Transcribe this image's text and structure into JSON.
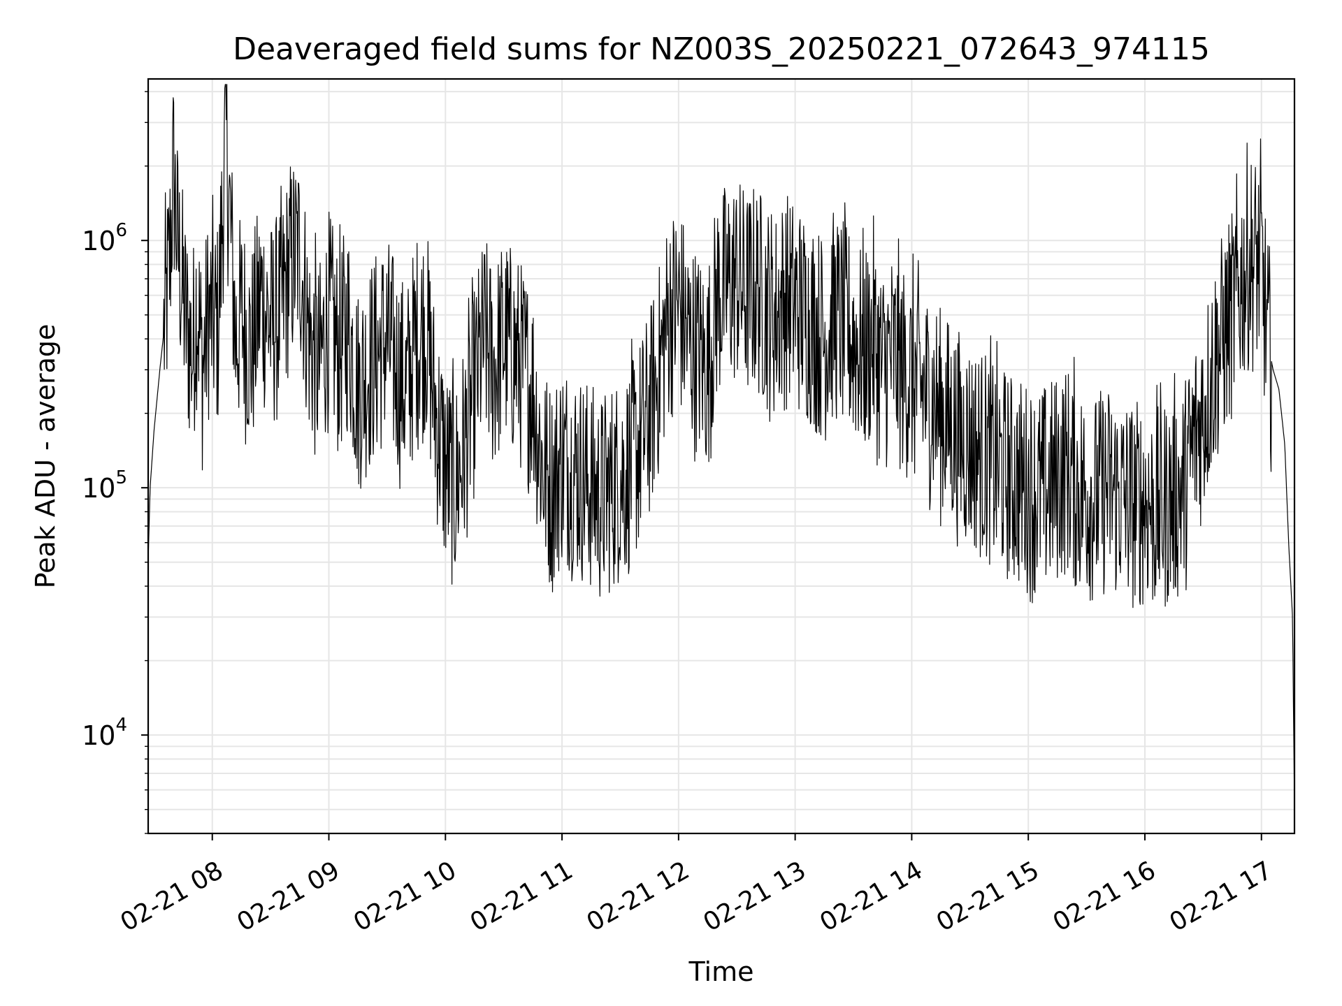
{
  "chart_data": {
    "type": "line",
    "title": "Deaveraged field sums for NZ003S_20250221_072643_974115",
    "xlabel": "Time",
    "ylabel": "Peak ADU - average",
    "y_scale": "log",
    "ylim": [
      4000,
      4500000
    ],
    "xlim": [
      "02-21 07:27",
      "02-21 17:17"
    ],
    "grid": true,
    "grid_minor": true,
    "line_color": "#000000",
    "grid_color": "#e6e6e6",
    "xticks": [
      "02-21 08",
      "02-21 09",
      "02-21 10",
      "02-21 11",
      "02-21 12",
      "02-21 13",
      "02-21 14",
      "02-21 15",
      "02-21 16",
      "02-21 17"
    ],
    "yticks": [
      {
        "value": 10000,
        "base": "10",
        "exp": "4"
      },
      {
        "value": 100000,
        "base": "10",
        "exp": "5"
      },
      {
        "value": 1000000,
        "base": "10",
        "exp": "6"
      }
    ],
    "series": [
      {
        "x": [
          "02-21 07:27",
          "02-21 07:28",
          "02-21 07:30",
          "02-21 07:33",
          "02-21 07:36",
          "02-21 07:38",
          "02-21 07:40",
          "02-21 07:42",
          "02-21 07:44",
          "02-21 07:46",
          "02-21 07:48",
          "02-21 07:50",
          "02-21 07:52",
          "02-21 07:55",
          "02-21 07:58",
          "02-21 08:03",
          "02-21 08:07",
          "02-21 08:12",
          "02-21 08:15",
          "02-21 08:20",
          "02-21 08:25",
          "02-21 08:30",
          "02-21 08:35",
          "02-21 08:40",
          "02-21 08:45",
          "02-21 08:50",
          "02-21 08:55",
          "02-21 09:00",
          "02-21 09:05",
          "02-21 09:10",
          "02-21 09:15",
          "02-21 09:20",
          "02-21 09:25",
          "02-21 09:30",
          "02-21 09:35",
          "02-21 09:40",
          "02-21 09:45",
          "02-21 09:50",
          "02-21 09:55",
          "02-21 10:00",
          "02-21 10:05",
          "02-21 10:10",
          "02-21 10:15",
          "02-21 10:20",
          "02-21 10:25",
          "02-21 10:30",
          "02-21 10:35",
          "02-21 10:40",
          "02-21 10:45",
          "02-21 10:50",
          "02-21 10:55",
          "02-21 11:00",
          "02-21 11:05",
          "02-21 11:10",
          "02-21 11:15",
          "02-21 11:20",
          "02-21 11:25",
          "02-21 11:30",
          "02-21 11:35",
          "02-21 11:40",
          "02-21 11:45",
          "02-21 11:50",
          "02-21 11:55",
          "02-21 12:00",
          "02-21 12:05",
          "02-21 12:10",
          "02-21 12:15",
          "02-21 12:20",
          "02-21 12:25",
          "02-21 12:30",
          "02-21 12:35",
          "02-21 12:40",
          "02-21 12:45",
          "02-21 12:50",
          "02-21 12:55",
          "02-21 13:00",
          "02-21 13:05",
          "02-21 13:10",
          "02-21 13:15",
          "02-21 13:20",
          "02-21 13:25",
          "02-21 13:30",
          "02-21 13:35",
          "02-21 13:40",
          "02-21 13:45",
          "02-21 13:50",
          "02-21 13:55",
          "02-21 14:00",
          "02-21 14:05",
          "02-21 14:10",
          "02-21 14:15",
          "02-21 14:20",
          "02-21 14:25",
          "02-21 14:30",
          "02-21 14:35",
          "02-21 14:40",
          "02-21 14:45",
          "02-21 14:50",
          "02-21 14:55",
          "02-21 15:00",
          "02-21 15:05",
          "02-21 15:10",
          "02-21 15:15",
          "02-21 15:20",
          "02-21 15:25",
          "02-21 15:30",
          "02-21 15:35",
          "02-21 15:40",
          "02-21 15:45",
          "02-21 15:50",
          "02-21 15:55",
          "02-21 16:00",
          "02-21 16:05",
          "02-21 16:10",
          "02-21 16:15",
          "02-21 16:20",
          "02-21 16:25",
          "02-21 16:30",
          "02-21 16:35",
          "02-21 16:40",
          "02-21 16:45",
          "02-21 16:50",
          "02-21 16:55",
          "02-21 17:00",
          "02-21 17:03",
          "02-21 17:06",
          "02-21 17:09",
          "02-21 17:12",
          "02-21 17:14",
          "02-21 17:16",
          "02-21 17:17"
        ],
        "y": [
          50000,
          100000,
          170000,
          300000,
          500000,
          800000,
          1900000,
          1000000,
          700000,
          500000,
          400000,
          350000,
          600000,
          300000,
          500000,
          450000,
          2800000,
          400000,
          500000,
          350000,
          600000,
          450000,
          500000,
          800000,
          900000,
          400000,
          300000,
          500000,
          350000,
          450000,
          250000,
          300000,
          350000,
          400000,
          300000,
          250000,
          400000,
          450000,
          200000,
          120000,
          100000,
          150000,
          250000,
          400000,
          300000,
          400000,
          350000,
          300000,
          250000,
          120000,
          100000,
          130000,
          120000,
          110000,
          100000,
          90000,
          100000,
          110000,
          120000,
          150000,
          200000,
          300000,
          500000,
          550000,
          400000,
          350000,
          300000,
          600000,
          650000,
          700000,
          600000,
          650000,
          550000,
          500000,
          600000,
          550000,
          500000,
          450000,
          400000,
          500000,
          450000,
          400000,
          350000,
          400000,
          300000,
          350000,
          300000,
          280000,
          250000,
          230000,
          200000,
          180000,
          160000,
          150000,
          140000,
          130000,
          120000,
          110000,
          105000,
          100000,
          95000,
          100000,
          110000,
          120000,
          100000,
          95000,
          90000,
          100000,
          95000,
          90000,
          85000,
          90000,
          80000,
          85000,
          90000,
          100000,
          150000,
          200000,
          300000,
          400000,
          500000,
          700000,
          850000,
          800000,
          400000,
          300000,
          250000,
          150000,
          60000,
          30000,
          5000
        ]
      }
    ]
  }
}
